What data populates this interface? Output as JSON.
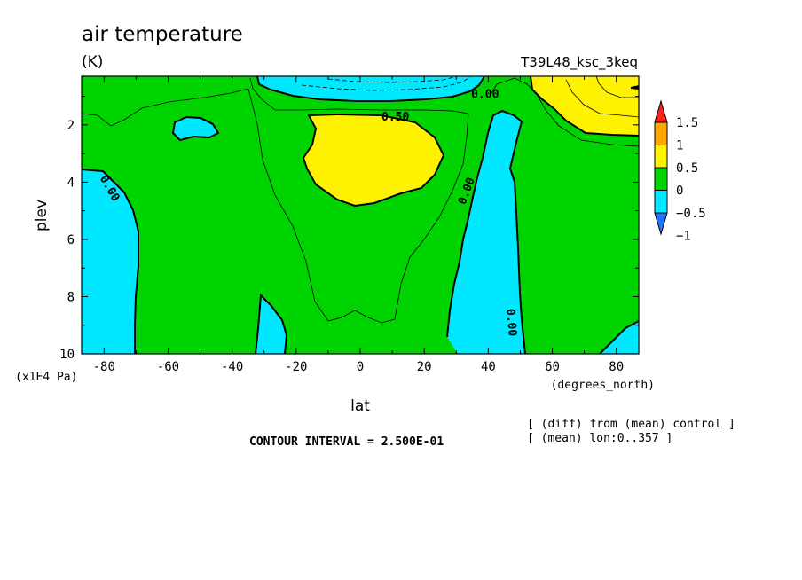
{
  "header": {
    "title": "air temperature",
    "units": "(K)",
    "experiment": "T39L48_ksc_3keq"
  },
  "footer": {
    "contour_interval": "CONTOUR INTERVAL = 2.500E-01",
    "note_diff": "[ (diff) from (mean) control ]",
    "note_mean": "[ (mean) lon:0..357 ]"
  },
  "chart_data": {
    "type": "heatmap",
    "title": "air temperature",
    "units": "(K)",
    "xlabel": "lat",
    "xunits": "(degrees_north)",
    "ylabel": "plev",
    "yunits": "(x1E4 Pa)",
    "xlim": [
      -87,
      87
    ],
    "ylim": [
      10,
      0.3
    ],
    "x_ticks": [
      -80,
      -60,
      -40,
      -20,
      0,
      20,
      40,
      60,
      80
    ],
    "y_ticks": [
      2,
      4,
      6,
      8,
      10
    ],
    "colorbar": {
      "levels": [
        -1,
        -0.5,
        0,
        0.5,
        1,
        1.5
      ],
      "labels": [
        "1.5",
        "1",
        "0.5",
        "0",
        "−0.5",
        "−1"
      ],
      "colors": [
        "#1e78ff",
        "#00e8ff",
        "#00d400",
        "#fff200",
        "#ffa500",
        "#ff2020"
      ]
    },
    "contour_labels": [
      {
        "text": "0.00",
        "x": 39.0,
        "y": 0.9
      },
      {
        "text": "0.50",
        "x": 11.0,
        "y": 1.7
      },
      {
        "text": "0.00",
        "x": -78.0,
        "y": 4.2
      },
      {
        "text": "0.00",
        "x": 33.0,
        "y": 4.3
      },
      {
        "text": "0.00",
        "x": 47.5,
        "y": 8.9
      }
    ],
    "regions": [
      {
        "level": "0 to 0.5",
        "description": "background field"
      },
      {
        "level": "0.5 to 1",
        "description": "upper troposphere, lat -17 to 26, plev 1.4-4.7"
      },
      {
        "level": "0.5 to 1",
        "description": "upper level, lat 52 to 87, plev 0.3-2.2"
      },
      {
        "level": "-0.5 to 0",
        "description": "lat -87 to -72, plev 3.4-10"
      },
      {
        "level": "-0.5 to 0",
        "description": "lat 27 to 50, plev 1.4-10"
      },
      {
        "level": "-0.5 to 0",
        "description": "top, lat -33 to 40, plev 0.3-0.9"
      },
      {
        "level": "-0.5 to 0",
        "description": "lat -60 to -44, plev 1.6-2.4"
      },
      {
        "level": "-0.5 to 0",
        "description": "lat -32 to -23, plev 7.9-10"
      },
      {
        "level": "-0.5 to 0",
        "description": "lat 52 to 87, plev 8.8-10"
      }
    ]
  }
}
